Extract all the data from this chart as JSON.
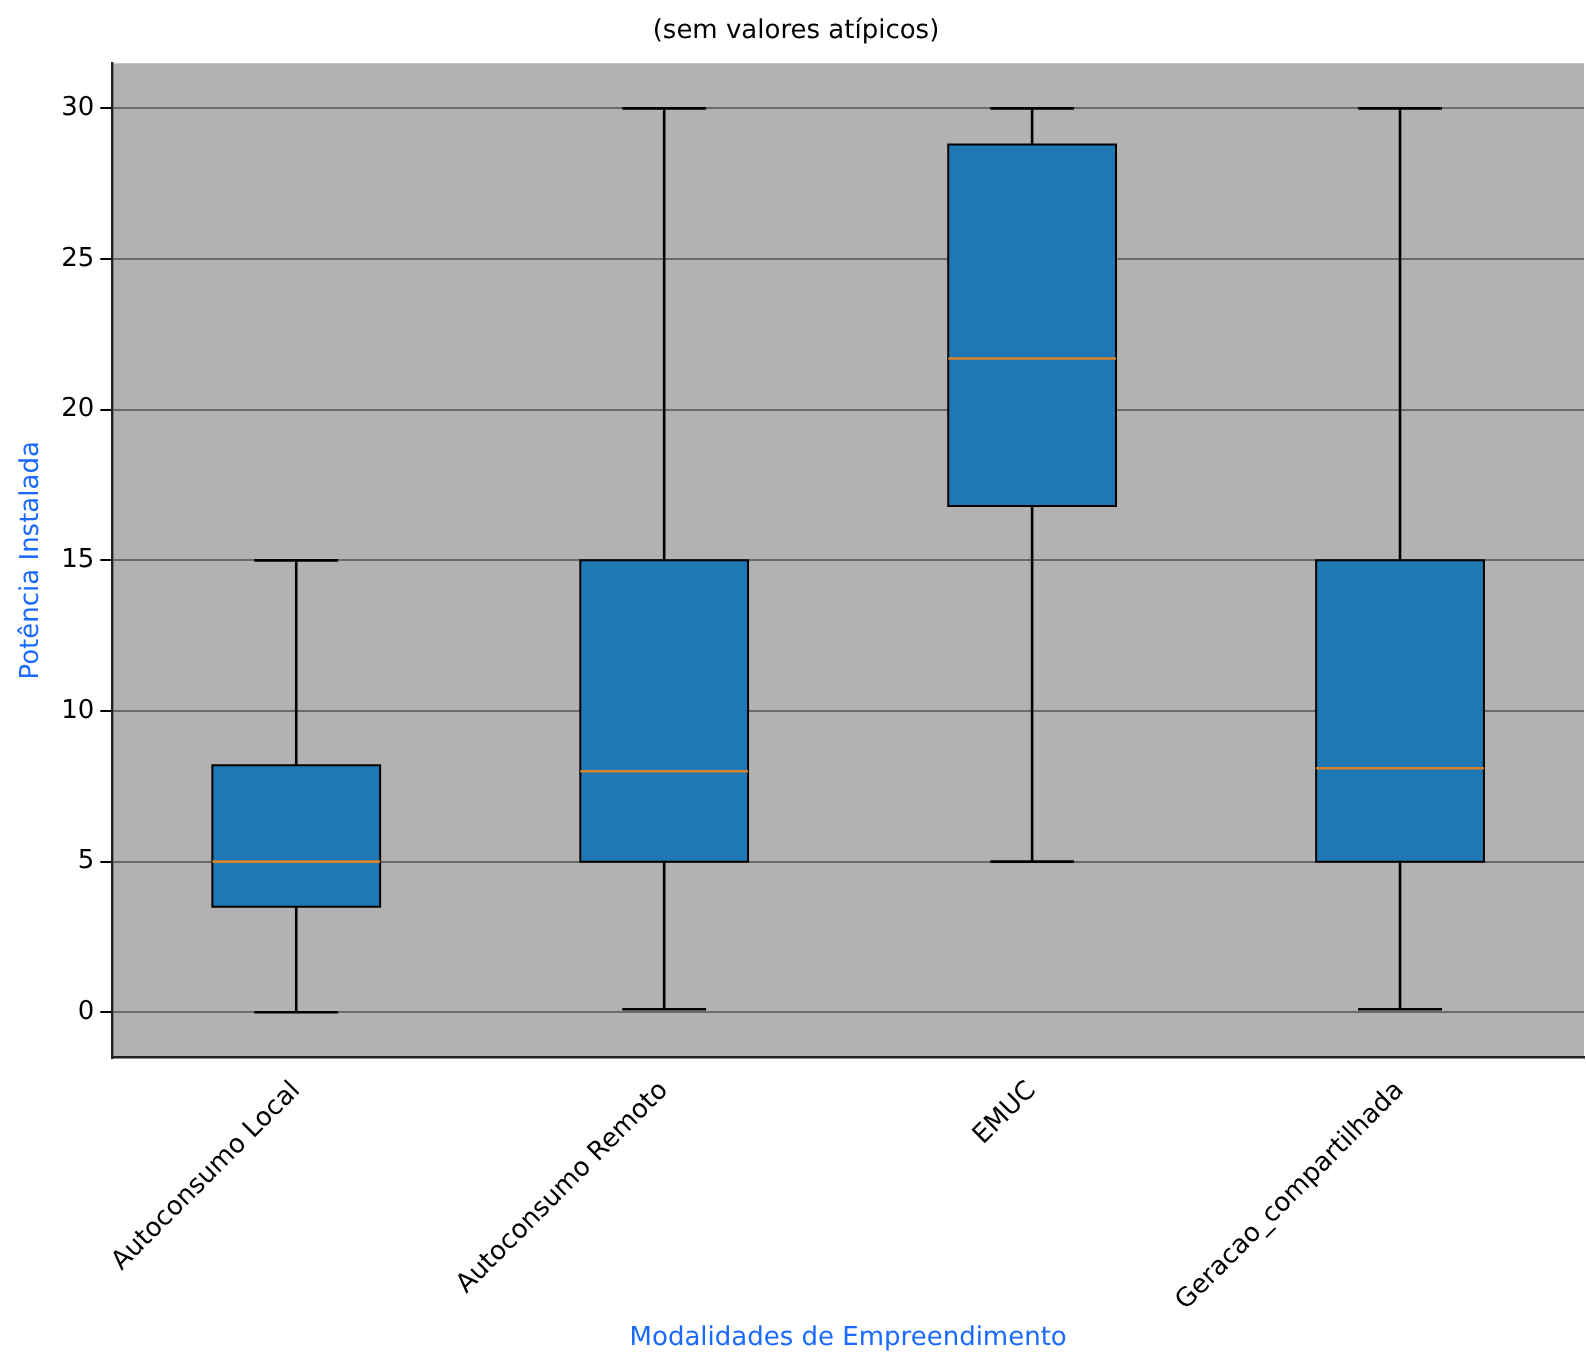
{
  "chart_data": {
    "type": "box",
    "title": "(sem valores atípicos)",
    "xlabel": "Modalidades de Empreendimento",
    "ylabel": "Potência Instalada",
    "categories": [
      "Autoconsumo Local",
      "Autoconsumo Remoto",
      "EMUC",
      "Geracao_compartilhada"
    ],
    "boxes": [
      {
        "low": 0,
        "q1": 3.5,
        "median": 5,
        "q3": 8.2,
        "high": 15
      },
      {
        "low": 0.1,
        "q1": 5,
        "median": 8,
        "q3": 15,
        "high": 30
      },
      {
        "low": 5,
        "q1": 16.8,
        "median": 21.7,
        "q3": 28.8,
        "high": 30
      },
      {
        "low": 0.1,
        "q1": 5,
        "median": 8.1,
        "q3": 15,
        "high": 30
      }
    ],
    "color": "#1f77b4",
    "ylim": [
      -1.5,
      31.5
    ],
    "yticks": [
      0,
      5,
      10,
      15,
      20,
      25,
      30
    ],
    "grid": "y"
  }
}
